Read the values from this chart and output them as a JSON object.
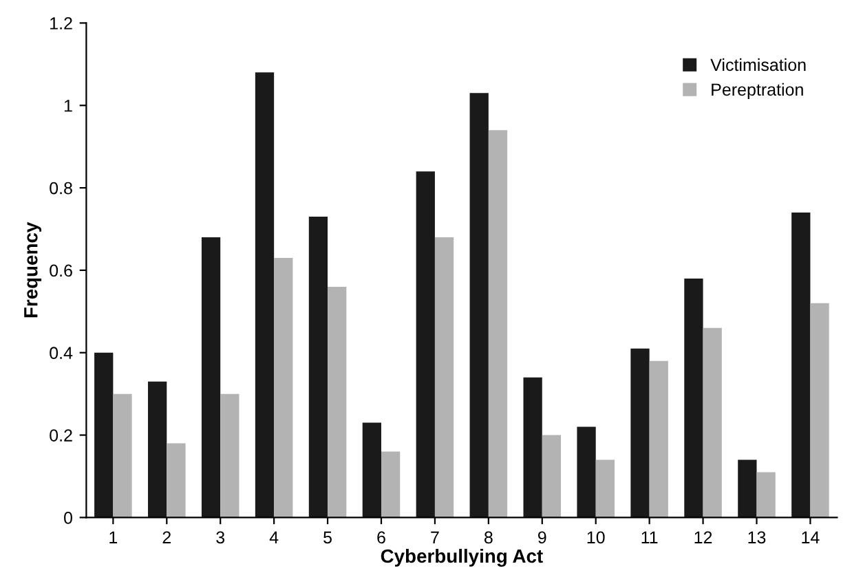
{
  "chart_data": {
    "type": "bar",
    "xlabel": "Cyberbullying Act",
    "ylabel": "Frequency",
    "categories": [
      "1",
      "2",
      "3",
      "4",
      "5",
      "6",
      "7",
      "8",
      "9",
      "10",
      "11",
      "12",
      "13",
      "14"
    ],
    "series": [
      {
        "name": "Victimisation",
        "color": "#1a1a1a",
        "values": [
          0.4,
          0.33,
          0.68,
          1.08,
          0.73,
          0.23,
          0.84,
          1.03,
          0.34,
          0.22,
          0.41,
          0.58,
          0.14,
          0.74
        ]
      },
      {
        "name": "Pereptration",
        "color": "#b3b3b3",
        "values": [
          0.3,
          0.18,
          0.3,
          0.63,
          0.56,
          0.16,
          0.68,
          0.94,
          0.2,
          0.14,
          0.38,
          0.46,
          0.11,
          0.52
        ]
      }
    ],
    "ylim": [
      0,
      1.2
    ],
    "yticks": [
      0,
      0.2,
      0.4,
      0.6,
      0.8,
      1,
      1.2
    ],
    "grid": false,
    "legend": "top right"
  }
}
